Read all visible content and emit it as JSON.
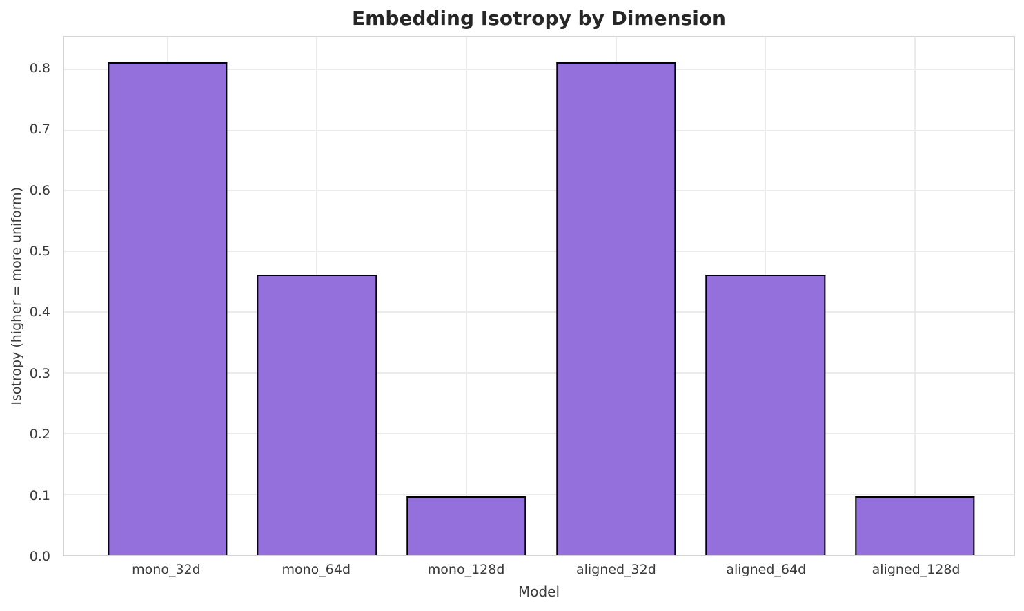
{
  "chart_data": {
    "type": "bar",
    "title": "Embedding Isotropy by Dimension",
    "xlabel": "Model",
    "ylabel": "Isotropy (higher = more uniform)",
    "categories": [
      "mono_32d",
      "mono_64d",
      "mono_128d",
      "aligned_32d",
      "aligned_64d",
      "aligned_128d"
    ],
    "values": [
      0.812,
      0.462,
      0.097,
      0.812,
      0.462,
      0.097
    ],
    "yticks": [
      "0.0",
      "0.1",
      "0.2",
      "0.3",
      "0.4",
      "0.5",
      "0.6",
      "0.7",
      "0.8"
    ],
    "ylim": [
      0,
      0.853
    ],
    "xlim": [
      -0.69,
      5.66
    ],
    "bar_width": 0.8,
    "grid": true,
    "legend": false,
    "colors": {
      "bar_fill": "#9370DB",
      "bar_edge": "#000000",
      "grid": "#ebebeb",
      "spine": "#d3d3d3",
      "title_text": "#262626",
      "tick_text": "#3b3b3b",
      "background": "#ffffff"
    }
  }
}
